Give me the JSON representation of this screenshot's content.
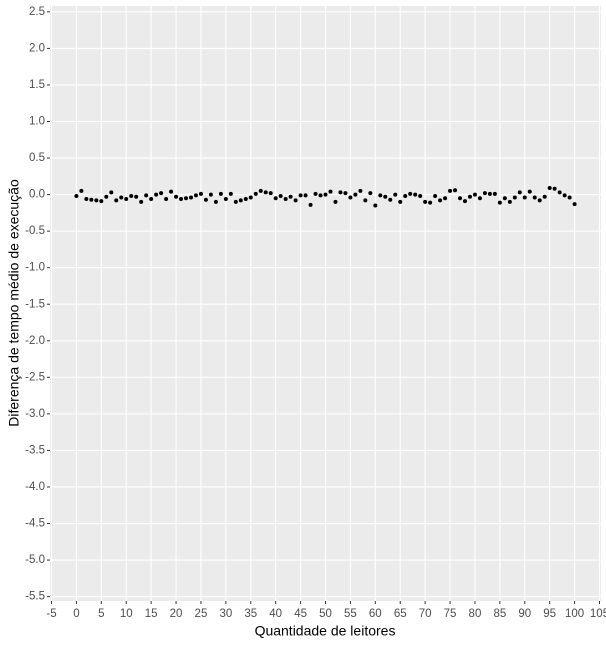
{
  "chart_data": {
    "type": "scatter",
    "x_label": "Quantidade de leitores",
    "y_label": "Diferença de tempo médio de execução",
    "x": [
      0,
      1,
      2,
      3,
      4,
      5,
      6,
      7,
      8,
      9,
      10,
      11,
      12,
      13,
      14,
      15,
      16,
      17,
      18,
      19,
      20,
      21,
      22,
      23,
      24,
      25,
      26,
      27,
      28,
      29,
      30,
      31,
      32,
      33,
      34,
      35,
      36,
      37,
      38,
      39,
      40,
      41,
      42,
      43,
      44,
      45,
      46,
      47,
      48,
      49,
      50,
      51,
      52,
      53,
      54,
      55,
      56,
      57,
      58,
      59,
      60,
      61,
      62,
      63,
      64,
      65,
      66,
      67,
      68,
      69,
      70,
      71,
      72,
      73,
      74,
      75,
      76,
      77,
      78,
      79,
      80,
      81,
      82,
      83,
      84,
      85,
      86,
      87,
      88,
      89,
      90,
      91,
      92,
      93,
      94,
      95,
      96,
      97,
      98,
      99,
      100
    ],
    "values": [
      -0.02,
      0.05,
      -0.06,
      -0.07,
      -0.08,
      -0.09,
      -0.03,
      0.03,
      -0.08,
      -0.04,
      -0.06,
      -0.02,
      -0.03,
      -0.1,
      -0.01,
      -0.06,
      0.0,
      0.02,
      -0.06,
      0.04,
      -0.03,
      -0.06,
      -0.05,
      -0.04,
      -0.01,
      0.01,
      -0.07,
      0.0,
      -0.1,
      0.01,
      -0.06,
      0.01,
      -0.1,
      -0.08,
      -0.06,
      -0.04,
      0.01,
      0.05,
      0.03,
      0.02,
      -0.05,
      -0.02,
      -0.06,
      -0.03,
      -0.08,
      -0.01,
      -0.01,
      -0.14,
      0.01,
      -0.01,
      0.0,
      0.04,
      -0.1,
      0.03,
      0.02,
      -0.04,
      0.0,
      0.05,
      -0.08,
      0.02,
      -0.15,
      -0.01,
      -0.03,
      -0.07,
      0.0,
      -0.1,
      -0.02,
      0.01,
      0.0,
      -0.02,
      -0.1,
      -0.11,
      -0.02,
      -0.08,
      -0.05,
      0.05,
      0.06,
      -0.05,
      -0.09,
      -0.03,
      0.0,
      -0.05,
      0.02,
      0.01,
      0.01,
      -0.11,
      -0.05,
      -0.1,
      -0.04,
      0.03,
      -0.04,
      0.04,
      -0.04,
      -0.08,
      -0.03,
      0.09,
      0.08,
      0.03,
      -0.01,
      -0.04,
      -0.13
    ],
    "color": "#000000",
    "xlim": [
      -5.3,
      105.3
    ],
    "xticks": [
      -5,
      0,
      5,
      10,
      15,
      20,
      25,
      30,
      35,
      40,
      45,
      50,
      55,
      60,
      65,
      70,
      75,
      80,
      85,
      90,
      95,
      100,
      105
    ],
    "ylim": [
      -5.56,
      2.58
    ],
    "yticks": [
      2.5,
      {
        "value": 2,
        "label": "2.0"
      },
      1.5,
      {
        "value": 1,
        "label": "1.0"
      },
      0.5,
      {
        "value": 0,
        "label": "0.0"
      },
      -0.5,
      {
        "value": -1,
        "label": "-1.0"
      },
      -1.5,
      {
        "value": -2,
        "label": "-2.0"
      },
      -2.5,
      {
        "value": -3,
        "label": "-3.0"
      },
      -3.5,
      {
        "value": -4,
        "label": "-4.0"
      },
      -4.5,
      {
        "value": -5,
        "label": "-5.0"
      },
      -5.5
    ],
    "grid": true
  }
}
